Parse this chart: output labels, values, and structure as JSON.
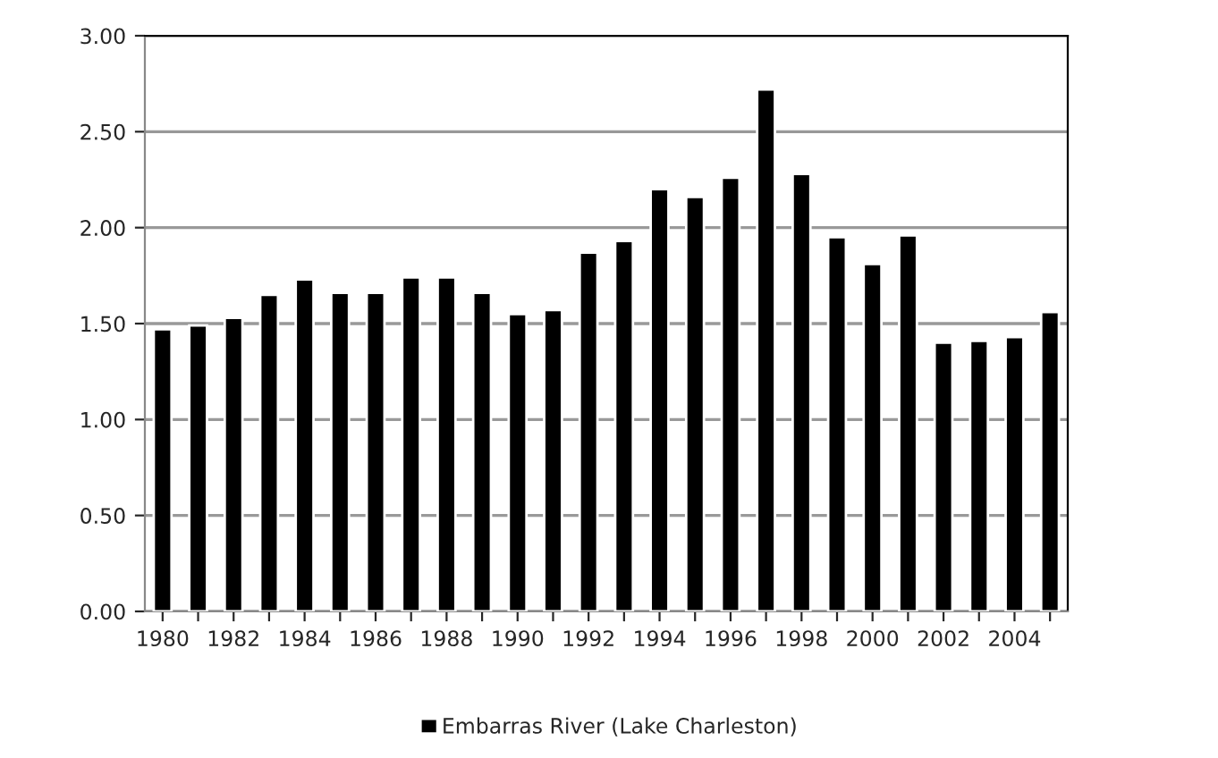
{
  "chart_data": {
    "type": "bar",
    "categories": [
      "1980",
      null,
      "1982",
      null,
      "1984",
      null,
      "1986",
      null,
      "1988",
      null,
      "1990",
      null,
      "1992",
      null,
      "1994",
      null,
      "1996",
      null,
      "1998",
      null,
      "2000",
      null,
      "2002",
      null,
      "2004",
      null
    ],
    "series": [
      {
        "name": "Embarras River (Lake Charleston)",
        "color": "#000000",
        "values": [
          1.47,
          1.49,
          1.53,
          1.65,
          1.73,
          1.66,
          1.66,
          1.74,
          1.74,
          1.66,
          1.55,
          1.57,
          1.87,
          1.93,
          2.2,
          2.16,
          2.26,
          2.72,
          2.28,
          1.95,
          1.81,
          1.96,
          1.4,
          1.41,
          1.43,
          1.56
        ]
      }
    ],
    "ylim": [
      0,
      3
    ],
    "yticks": [
      {
        "value": 0,
        "label": "0.00"
      },
      {
        "value": 0.5,
        "label": "0.50"
      },
      {
        "value": 1,
        "label": "1.00"
      },
      {
        "value": 1.5,
        "label": "1.50"
      },
      {
        "value": 2,
        "label": "2.00"
      },
      {
        "value": 2.5,
        "label": "2.50"
      },
      {
        "value": 3,
        "label": "3.00"
      }
    ],
    "grid": "y",
    "legend": "bottom"
  }
}
